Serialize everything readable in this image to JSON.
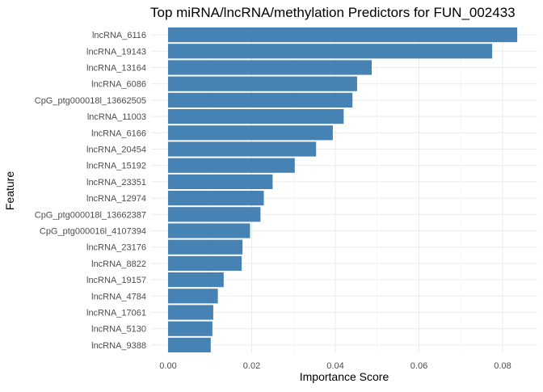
{
  "chart_data": {
    "type": "bar",
    "orientation": "horizontal",
    "title": "Top miRNA/lncRNA/methylation Predictors for FUN_002433",
    "xlabel": "Importance Score",
    "ylabel": "Feature",
    "xlim": [
      0,
      0.085
    ],
    "xticks": [
      0.0,
      0.02,
      0.04,
      0.06,
      0.08
    ],
    "xtick_labels": [
      "0.00",
      "0.02",
      "0.04",
      "0.06",
      "0.08"
    ],
    "bar_color": "#4682b4",
    "grid": true,
    "categories": [
      "lncRNA_6116",
      "lncRNA_19143",
      "lncRNA_13164",
      "lncRNA_6086",
      "CpG_ptg000018l_13662505",
      "lncRNA_11003",
      "lncRNA_6166",
      "lncRNA_20454",
      "lncRNA_15192",
      "lncRNA_23351",
      "lncRNA_12974",
      "CpG_ptg000018l_13662387",
      "CpG_ptg000016l_4107394",
      "lncRNA_23176",
      "lncRNA_8822",
      "lncRNA_19157",
      "lncRNA_4784",
      "lncRNA_17061",
      "lncRNA_5130",
      "lncRNA_9388"
    ],
    "values": [
      0.0835,
      0.0775,
      0.0487,
      0.0452,
      0.0441,
      0.042,
      0.0394,
      0.0354,
      0.0303,
      0.025,
      0.0229,
      0.0221,
      0.0196,
      0.0178,
      0.0176,
      0.0133,
      0.0119,
      0.0108,
      0.0106,
      0.0102
    ]
  }
}
